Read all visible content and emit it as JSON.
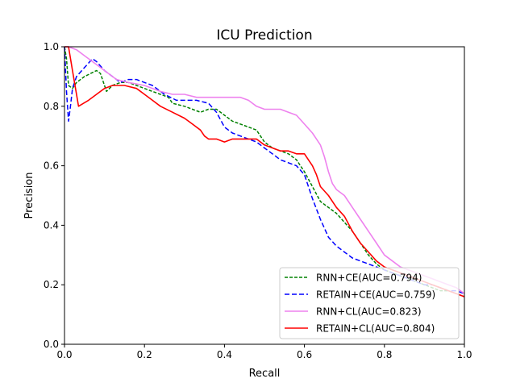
{
  "chart_data": {
    "type": "line",
    "title": "ICU Prediction",
    "xlabel": "Recall",
    "ylabel": "Precision",
    "xlim": [
      0,
      1
    ],
    "ylim": [
      0,
      1
    ],
    "xticks": [
      "0.0",
      "0.2",
      "0.4",
      "0.6",
      "0.8",
      "1.0"
    ],
    "yticks": [
      "0.0",
      "0.2",
      "0.4",
      "0.6",
      "0.8",
      "1.0"
    ],
    "grid": false,
    "legend_position": "bottom-right",
    "series": [
      {
        "name": "RNN+CE(AUC=0.794)",
        "color": "#008000",
        "dash": "dashed",
        "x": [
          0.0,
          0.005,
          0.01,
          0.02,
          0.03,
          0.05,
          0.08,
          0.09,
          0.1,
          0.105,
          0.12,
          0.14,
          0.16,
          0.18,
          0.2,
          0.22,
          0.24,
          0.26,
          0.27,
          0.3,
          0.32,
          0.34,
          0.36,
          0.38,
          0.4,
          0.42,
          0.44,
          0.46,
          0.48,
          0.5,
          0.52,
          0.54,
          0.56,
          0.58,
          0.6,
          0.62,
          0.64,
          0.66,
          0.68,
          0.7,
          0.72,
          0.74,
          0.76,
          0.78,
          0.8,
          0.82,
          0.84,
          0.86,
          0.88,
          0.9,
          0.92,
          0.94,
          0.96,
          0.98,
          1.0
        ],
        "y": [
          1.0,
          0.96,
          0.87,
          0.86,
          0.88,
          0.9,
          0.92,
          0.91,
          0.87,
          0.85,
          0.87,
          0.88,
          0.88,
          0.87,
          0.86,
          0.85,
          0.84,
          0.83,
          0.81,
          0.8,
          0.79,
          0.78,
          0.79,
          0.79,
          0.77,
          0.75,
          0.74,
          0.73,
          0.72,
          0.68,
          0.66,
          0.65,
          0.64,
          0.62,
          0.58,
          0.53,
          0.48,
          0.46,
          0.44,
          0.41,
          0.38,
          0.34,
          0.3,
          0.27,
          0.25,
          0.24,
          0.23,
          0.22,
          0.21,
          0.2,
          0.19,
          0.18,
          0.18,
          0.17,
          0.16
        ]
      },
      {
        "name": "RETAIN+CE(AUC=0.759)",
        "color": "#0000ff",
        "dash": "dashed",
        "x": [
          0.0,
          0.005,
          0.01,
          0.015,
          0.02,
          0.03,
          0.05,
          0.07,
          0.08,
          0.1,
          0.12,
          0.14,
          0.16,
          0.18,
          0.2,
          0.22,
          0.25,
          0.28,
          0.3,
          0.33,
          0.36,
          0.38,
          0.4,
          0.42,
          0.44,
          0.46,
          0.48,
          0.5,
          0.52,
          0.54,
          0.56,
          0.58,
          0.6,
          0.62,
          0.64,
          0.66,
          0.68,
          0.7,
          0.72,
          0.74,
          0.76,
          0.78,
          0.8,
          0.82,
          0.84,
          0.86,
          0.88,
          0.9,
          0.92,
          0.94,
          0.96,
          0.98,
          1.0
        ],
        "y": [
          1.0,
          0.85,
          0.75,
          0.8,
          0.86,
          0.9,
          0.93,
          0.96,
          0.95,
          0.92,
          0.9,
          0.88,
          0.89,
          0.89,
          0.88,
          0.87,
          0.84,
          0.82,
          0.82,
          0.82,
          0.81,
          0.78,
          0.73,
          0.71,
          0.7,
          0.69,
          0.68,
          0.66,
          0.64,
          0.62,
          0.61,
          0.6,
          0.57,
          0.49,
          0.42,
          0.36,
          0.33,
          0.31,
          0.29,
          0.28,
          0.27,
          0.26,
          0.25,
          0.24,
          0.23,
          0.22,
          0.21,
          0.2,
          0.2,
          0.19,
          0.18,
          0.18,
          0.17
        ]
      },
      {
        "name": "RNN+CL(AUC=0.823)",
        "color": "#ee82ee",
        "dash": "solid",
        "x": [
          0.0,
          0.01,
          0.03,
          0.05,
          0.07,
          0.1,
          0.13,
          0.16,
          0.2,
          0.24,
          0.27,
          0.3,
          0.33,
          0.36,
          0.4,
          0.42,
          0.44,
          0.46,
          0.48,
          0.5,
          0.52,
          0.54,
          0.56,
          0.58,
          0.6,
          0.62,
          0.63,
          0.64,
          0.65,
          0.66,
          0.67,
          0.68,
          0.7,
          0.72,
          0.74,
          0.76,
          0.78,
          0.8,
          0.82,
          0.84,
          0.86,
          0.88,
          0.9,
          0.92,
          0.94,
          0.96,
          0.98,
          1.0
        ],
        "y": [
          1.0,
          1.0,
          0.99,
          0.97,
          0.95,
          0.92,
          0.89,
          0.88,
          0.87,
          0.85,
          0.84,
          0.84,
          0.83,
          0.83,
          0.83,
          0.83,
          0.83,
          0.82,
          0.8,
          0.79,
          0.79,
          0.79,
          0.78,
          0.77,
          0.74,
          0.71,
          0.69,
          0.67,
          0.63,
          0.58,
          0.54,
          0.52,
          0.5,
          0.46,
          0.42,
          0.38,
          0.34,
          0.3,
          0.28,
          0.26,
          0.25,
          0.24,
          0.23,
          0.22,
          0.21,
          0.2,
          0.19,
          0.17
        ]
      },
      {
        "name": "RETAIN+CL(AUC=0.804)",
        "color": "#ff0000",
        "dash": "solid",
        "x": [
          0.0,
          0.01,
          0.02,
          0.03,
          0.035,
          0.06,
          0.08,
          0.1,
          0.12,
          0.15,
          0.18,
          0.2,
          0.22,
          0.24,
          0.27,
          0.3,
          0.32,
          0.34,
          0.35,
          0.36,
          0.38,
          0.4,
          0.42,
          0.44,
          0.46,
          0.48,
          0.5,
          0.52,
          0.54,
          0.56,
          0.58,
          0.6,
          0.62,
          0.63,
          0.64,
          0.66,
          0.68,
          0.7,
          0.72,
          0.74,
          0.76,
          0.78,
          0.8,
          0.82,
          0.84,
          0.86,
          0.88,
          0.9,
          0.92,
          0.94,
          0.96,
          0.98,
          1.0
        ],
        "y": [
          1.0,
          1.0,
          0.92,
          0.84,
          0.8,
          0.82,
          0.84,
          0.86,
          0.87,
          0.87,
          0.86,
          0.84,
          0.82,
          0.8,
          0.78,
          0.76,
          0.74,
          0.72,
          0.7,
          0.69,
          0.69,
          0.68,
          0.69,
          0.69,
          0.69,
          0.69,
          0.67,
          0.66,
          0.65,
          0.65,
          0.64,
          0.64,
          0.6,
          0.57,
          0.53,
          0.5,
          0.46,
          0.43,
          0.38,
          0.34,
          0.31,
          0.28,
          0.26,
          0.25,
          0.24,
          0.23,
          0.22,
          0.21,
          0.2,
          0.19,
          0.18,
          0.17,
          0.16
        ]
      }
    ]
  }
}
